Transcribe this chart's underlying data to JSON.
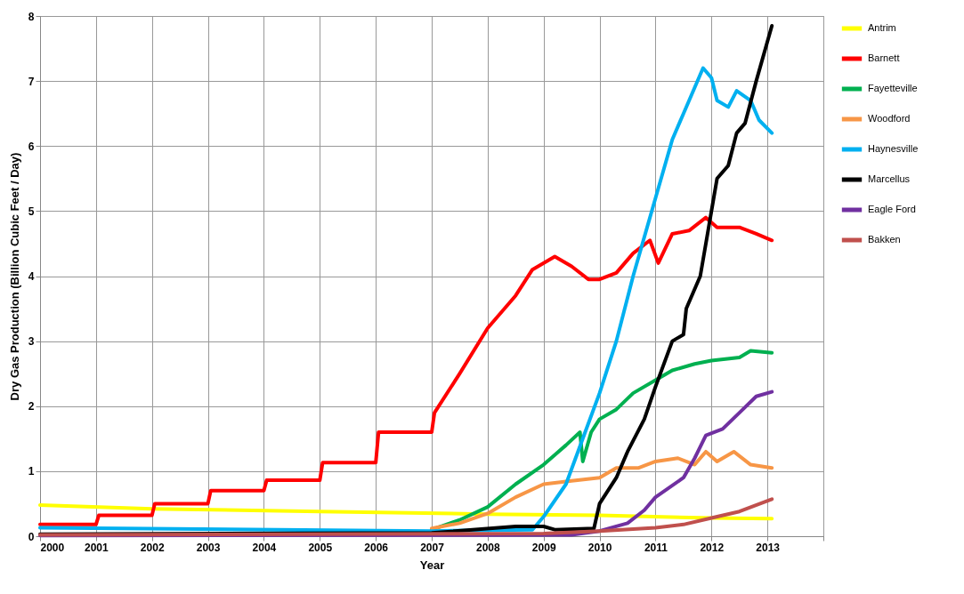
{
  "chart_data": {
    "type": "line",
    "xlabel": "Year",
    "ylabel": "Dry Gas Production (Billion Cubic Feet / Day)",
    "xlim": [
      2000,
      2014
    ],
    "xticks": [
      2000,
      2001,
      2002,
      2003,
      2004,
      2005,
      2006,
      2007,
      2008,
      2009,
      2010,
      2011,
      2012,
      2013,
      {
        "value": 2014,
        "label": null
      }
    ],
    "ylim": [
      0,
      8
    ],
    "yticks": [
      0,
      1,
      2,
      3,
      4,
      5,
      6,
      7,
      8
    ],
    "grid": true,
    "legend": "right",
    "line_style": "solid",
    "series": [
      {
        "name": "Antrim",
        "color": "#ffff00",
        "x": [
          2000,
          2002,
          2005,
          2008,
          2010,
          2012,
          2013.08
        ],
        "values": [
          0.48,
          0.42,
          0.38,
          0.34,
          0.32,
          0.28,
          0.27
        ]
      },
      {
        "name": "Barnett",
        "color": "#ff0000",
        "x": [
          2000,
          2001,
          2001.05,
          2002,
          2002.05,
          2003,
          2003.05,
          2004,
          2004.05,
          2005,
          2005.05,
          2006,
          2006.05,
          2007,
          2007.05,
          2007.5,
          2008,
          2008.5,
          2008.8,
          2009.2,
          2009.5,
          2009.8,
          2010,
          2010.3,
          2010.6,
          2010.9,
          2011.05,
          2011.3,
          2011.6,
          2011.9,
          2012.1,
          2012.5,
          2012.8,
          2013.08
        ],
        "values": [
          0.18,
          0.18,
          0.32,
          0.32,
          0.5,
          0.5,
          0.7,
          0.7,
          0.86,
          0.86,
          1.13,
          1.13,
          1.6,
          1.6,
          1.9,
          2.5,
          3.2,
          3.7,
          4.1,
          4.3,
          4.15,
          3.95,
          3.95,
          4.05,
          4.35,
          4.55,
          4.2,
          4.65,
          4.7,
          4.9,
          4.75,
          4.75,
          4.65,
          4.55
        ]
      },
      {
        "name": "Fayetteville",
        "color": "#00b050",
        "x": [
          2007,
          2007.5,
          2008,
          2008.5,
          2009,
          2009.4,
          2009.65,
          2009.7,
          2009.85,
          2010,
          2010.3,
          2010.6,
          2011,
          2011.3,
          2011.7,
          2012,
          2012.5,
          2012.7,
          2013.08
        ],
        "values": [
          0.1,
          0.25,
          0.45,
          0.8,
          1.1,
          1.4,
          1.6,
          1.15,
          1.6,
          1.8,
          1.95,
          2.2,
          2.4,
          2.55,
          2.65,
          2.7,
          2.75,
          2.85,
          2.82
        ]
      },
      {
        "name": "Woodford",
        "color": "#f79646",
        "x": [
          2007,
          2007.5,
          2008,
          2008.5,
          2009,
          2009.5,
          2010,
          2010.3,
          2010.7,
          2011,
          2011.4,
          2011.7,
          2011.9,
          2012.1,
          2012.4,
          2012.7,
          2013.08
        ],
        "values": [
          0.12,
          0.2,
          0.35,
          0.6,
          0.8,
          0.85,
          0.9,
          1.05,
          1.05,
          1.15,
          1.2,
          1.1,
          1.3,
          1.15,
          1.3,
          1.1,
          1.05
        ]
      },
      {
        "name": "Haynesville",
        "color": "#00b0f0",
        "x": [
          2000,
          2007,
          2008.8,
          2009,
          2009.4,
          2009.7,
          2010,
          2010.3,
          2010.6,
          2011,
          2011.3,
          2011.5,
          2011.7,
          2011.85,
          2012,
          2012.1,
          2012.3,
          2012.45,
          2012.7,
          2012.85,
          2013.08
        ],
        "values": [
          0.13,
          0.08,
          0.1,
          0.3,
          0.8,
          1.5,
          2.2,
          3,
          4,
          5.2,
          6.1,
          6.5,
          6.9,
          7.2,
          7.05,
          6.7,
          6.6,
          6.85,
          6.7,
          6.4,
          6.2
        ]
      },
      {
        "name": "Marcellus",
        "color": "#000000",
        "x": [
          2000,
          2007,
          2008.5,
          2009,
          2009.2,
          2009.9,
          2010,
          2010.3,
          2010.5,
          2010.8,
          2011,
          2011.3,
          2011.5,
          2011.55,
          2011.8,
          2012,
          2012.1,
          2012.3,
          2012.45,
          2012.6,
          2012.8,
          2013.08
        ],
        "values": [
          0.03,
          0.05,
          0.15,
          0.15,
          0.1,
          0.12,
          0.5,
          0.9,
          1.3,
          1.8,
          2.3,
          3,
          3.1,
          3.5,
          4,
          5,
          5.5,
          5.7,
          6.2,
          6.35,
          7,
          7.85
        ]
      },
      {
        "name": "Eagle Ford",
        "color": "#7030a0",
        "x": [
          2000,
          2009.5,
          2010,
          2010.5,
          2010.8,
          2011,
          2011.5,
          2011.7,
          2011.9,
          2012.2,
          2012.5,
          2012.8,
          2013.08
        ],
        "values": [
          0.01,
          0.02,
          0.08,
          0.2,
          0.4,
          0.6,
          0.9,
          1.2,
          1.55,
          1.65,
          1.9,
          2.15,
          2.22
        ]
      },
      {
        "name": "Bakken",
        "color": "#c0504d",
        "x": [
          2000,
          2009,
          2010,
          2011,
          2011.5,
          2012,
          2012.5,
          2013.08
        ],
        "values": [
          0.02,
          0.04,
          0.08,
          0.13,
          0.18,
          0.28,
          0.38,
          0.57
        ]
      }
    ]
  }
}
